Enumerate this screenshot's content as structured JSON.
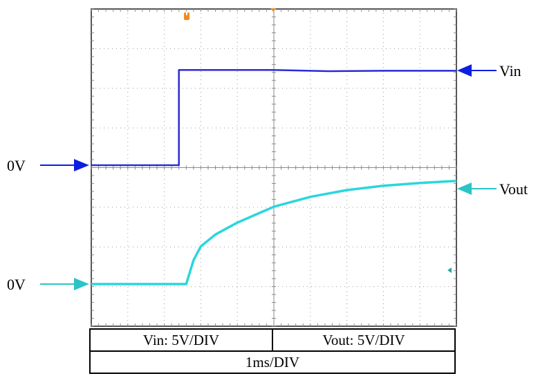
{
  "chart_data": {
    "type": "line",
    "title": "",
    "x_divisions": 10,
    "y_divisions": 8,
    "series": [
      {
        "name": "Vin",
        "color": "#2a2ad6",
        "zero_label": "0V",
        "x": [
          0.0,
          2.4,
          2.4,
          3.5,
          5.0,
          6.5,
          8.0,
          10.0
        ],
        "y": [
          0.0,
          0.0,
          2.4,
          2.4,
          2.4,
          2.37,
          2.38,
          2.38
        ]
      },
      {
        "name": "Vout",
        "color": "#2ad6dc",
        "zero_label": "0V",
        "x": [
          0.0,
          2.6,
          2.8,
          3.0,
          3.4,
          4.0,
          5.0,
          6.0,
          7.0,
          8.0,
          9.0,
          10.0
        ],
        "y": [
          0.0,
          0.0,
          0.6,
          0.95,
          1.25,
          1.55,
          1.95,
          2.2,
          2.37,
          2.48,
          2.55,
          2.6
        ]
      }
    ]
  },
  "labels": {
    "vin_trace": "Vin",
    "vout_trace": "Vout",
    "vin_zero": "0V",
    "vout_zero": "0V"
  },
  "table": {
    "vin_scale": "Vin: 5V/DIV",
    "vout_scale": "Vout: 5V/DIV",
    "time_scale": "1ms/DIV"
  }
}
